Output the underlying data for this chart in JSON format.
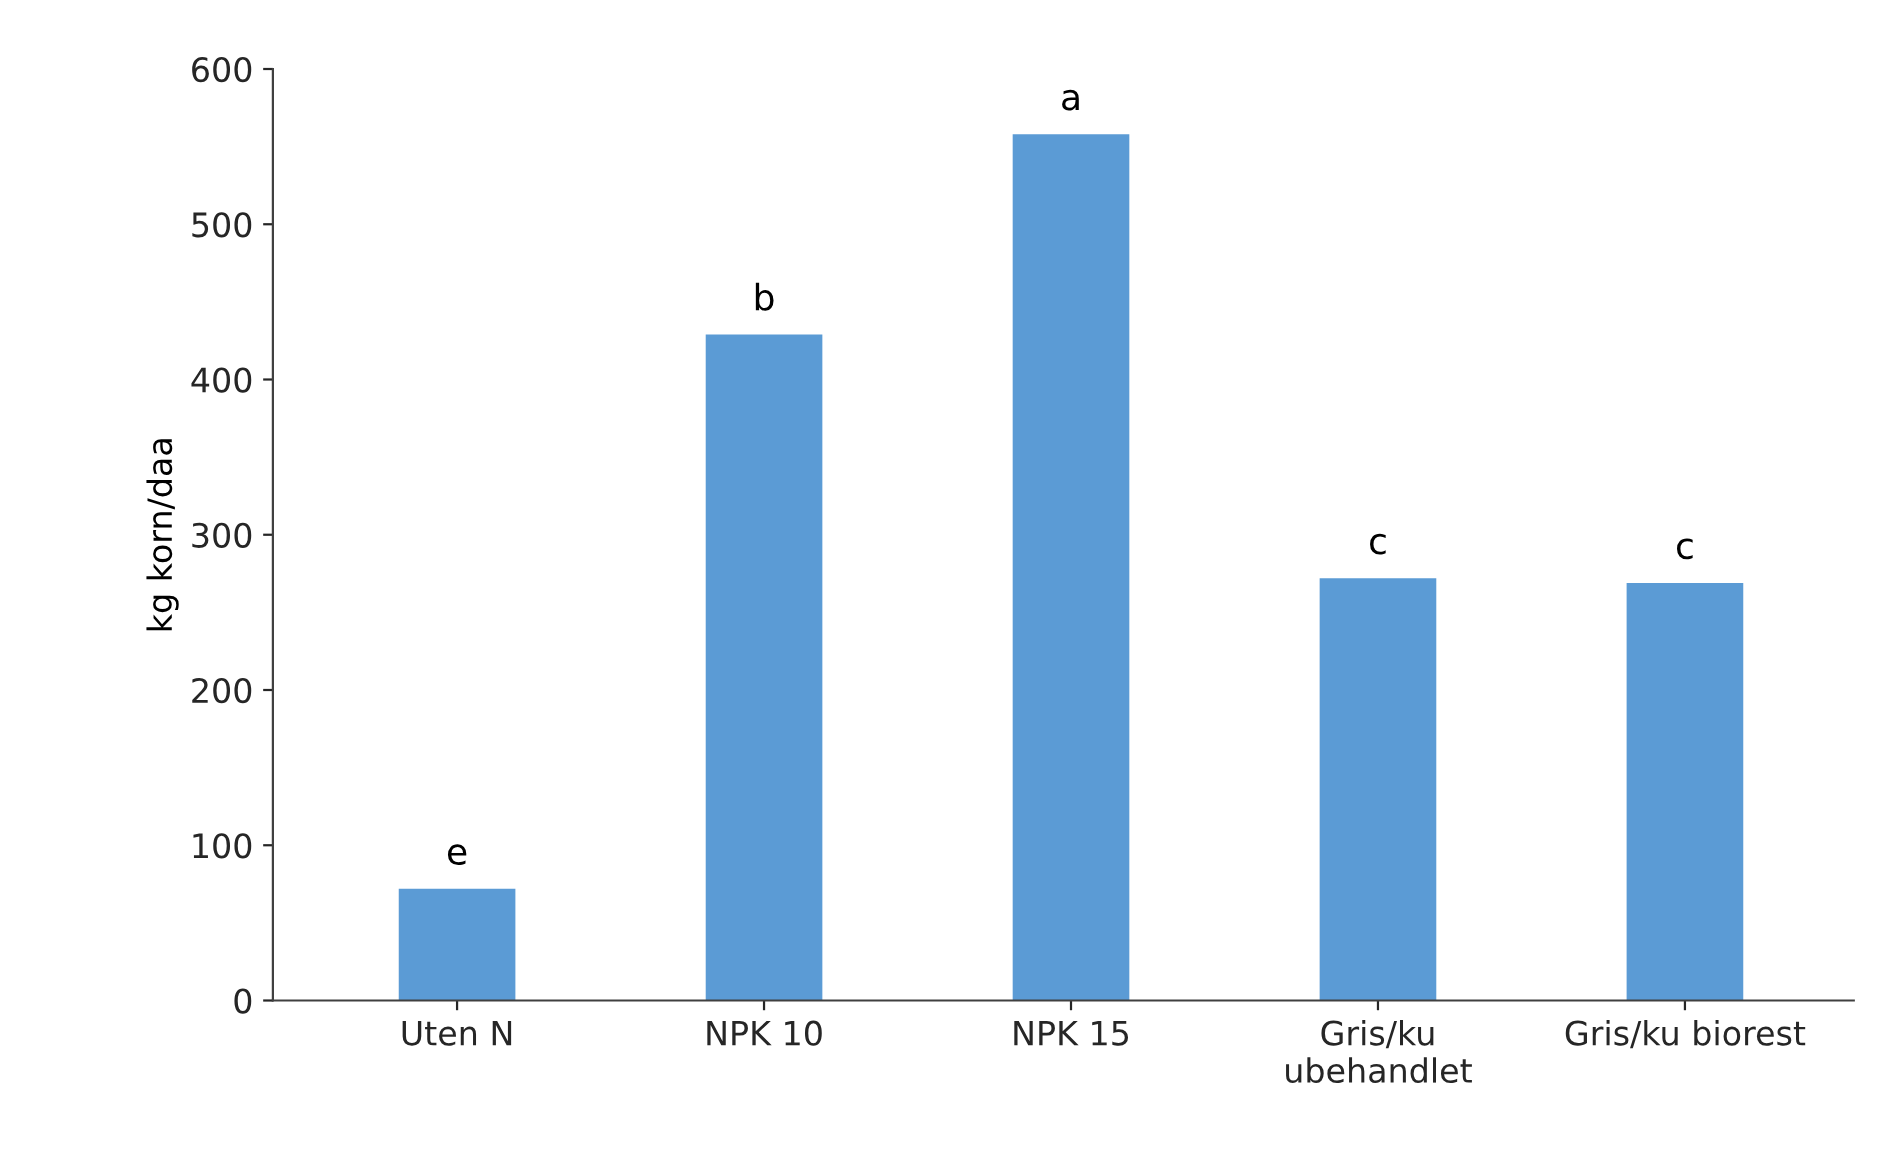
{
  "chart_data": {
    "type": "bar",
    "ylabel": "kg korn/daa",
    "categories": [
      "Uten N",
      "NPK 10",
      "NPK 15",
      "Gris/ku\nubehandlet",
      "Gris/ku biorest"
    ],
    "values": [
      72,
      429,
      558,
      272,
      269
    ],
    "color": "#5b9bd5",
    "ylim": [
      0,
      600
    ],
    "yticks": [
      0,
      100,
      200,
      300,
      400,
      500,
      600
    ],
    "grid": false,
    "legend": false,
    "annotations": [
      {
        "text": "e",
        "x": "Uten N",
        "y": 72
      },
      {
        "text": "b",
        "x": "NPK 10",
        "y": 429
      },
      {
        "text": "a",
        "x": "NPK 15",
        "y": 558
      },
      {
        "text": "c",
        "x": "Gris/ku\nubehandlet",
        "y": 272
      },
      {
        "text": "c",
        "x": "Gris/ku biorest",
        "y": 269
      }
    ]
  }
}
